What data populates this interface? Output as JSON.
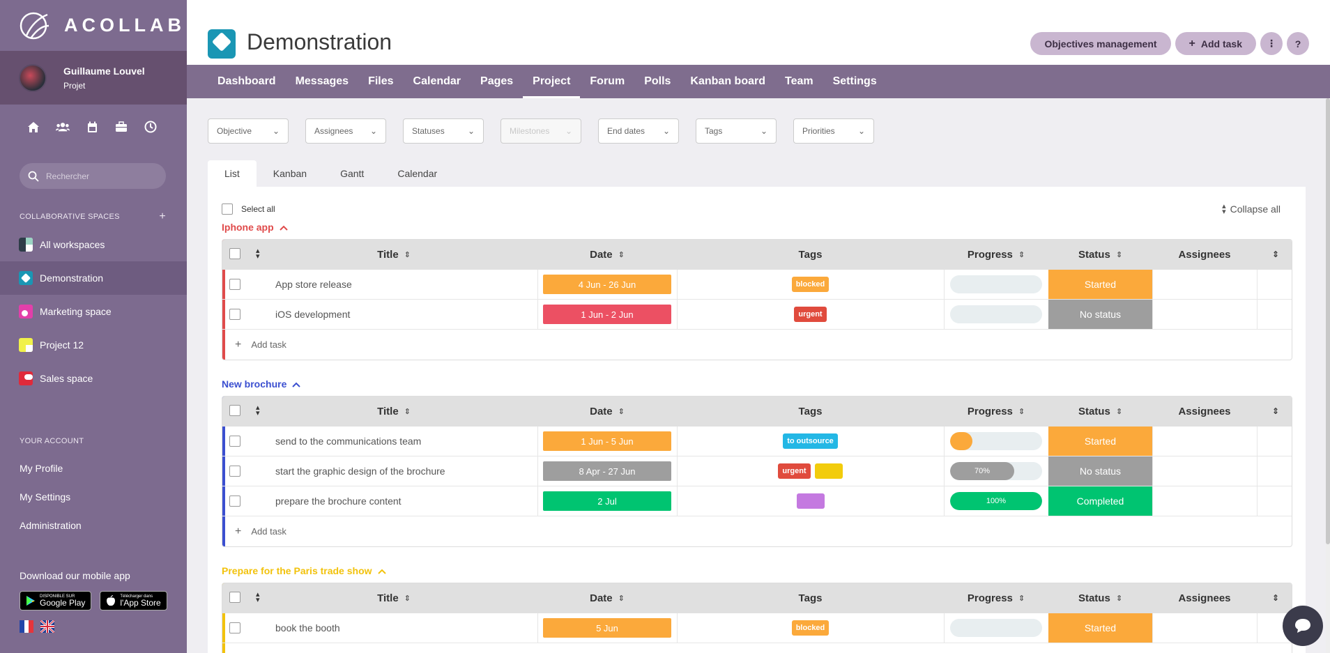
{
  "brand": {
    "name": "ACOLLAB"
  },
  "user": {
    "name": "Guillaume Louvel",
    "role": "Projet"
  },
  "quick_icons": [
    "home-icon",
    "users-icon",
    "calendar-icon",
    "briefcase-icon",
    "clock-icon"
  ],
  "side_search": {
    "placeholder": "Rechercher"
  },
  "spaces": {
    "label": "COLLABORATIVE SPACES",
    "add": "+",
    "items": [
      {
        "label": "All workspaces"
      },
      {
        "label": "Demonstration"
      },
      {
        "label": "Marketing space"
      },
      {
        "label": "Project 12"
      },
      {
        "label": "Sales space"
      }
    ]
  },
  "account": {
    "label": "YOUR ACCOUNT",
    "items": [
      {
        "label": "My Profile"
      },
      {
        "label": "My Settings"
      },
      {
        "label": "Administration"
      }
    ]
  },
  "mobile": {
    "label": "Download our mobile app",
    "google_small": "DISPONIBLE SUR",
    "google_big": "Google Play",
    "apple_small": "Télécharger dans",
    "apple_big": "l'App Store"
  },
  "header": {
    "title": "Demonstration",
    "objectives_btn": "Objectives management",
    "add_task_btn": "Add task",
    "more_btn": "⋮",
    "help_btn": "?"
  },
  "nav": [
    "Dashboard",
    "Messages",
    "Files",
    "Calendar",
    "Pages",
    "Project",
    "Forum",
    "Polls",
    "Kanban board",
    "Team",
    "Settings"
  ],
  "filters": [
    "Objective",
    "Assignees",
    "Statuses",
    "Milestones",
    "End dates",
    "Tags",
    "Priorities"
  ],
  "view_tabs": [
    "List",
    "Kanban",
    "Gantt",
    "Calendar"
  ],
  "list": {
    "select_all": "Select all",
    "collapse_all": "Collapse all",
    "add_task": "Add task"
  },
  "columns": {
    "title": "Title",
    "date": "Date",
    "tags": "Tags",
    "progress": "Progress",
    "status": "Status",
    "assignees": "Assignees"
  },
  "colors": {
    "orange": "#fba93b",
    "red": "#ec5063",
    "gray": "#9e9e9e",
    "green": "#00c471",
    "blue": "#23b7e5",
    "yellow": "#f2cc0c",
    "purple": "#c479e0",
    "tag_red": "#e04b3d"
  },
  "groups": [
    {
      "title": "Iphone app",
      "color": "#e04b4b",
      "tasks": [
        {
          "title": "App store release",
          "date": "4 Jun - 26 Jun",
          "date_color": "#fba93b",
          "tags": [
            {
              "label": "blocked",
              "color": "#fba93b"
            }
          ],
          "progress": 0,
          "progress_label": "",
          "status": "Started",
          "status_color": "#fba93b"
        },
        {
          "title": "iOS development",
          "date": "1 Jun - 2 Jun",
          "date_color": "#ec5063",
          "tags": [
            {
              "label": "urgent",
              "color": "#e04b3d"
            }
          ],
          "progress": 0,
          "progress_label": "",
          "status": "No status",
          "status_color": "#9e9e9e"
        }
      ]
    },
    {
      "title": "New brochure",
      "color": "#3b4fd0",
      "tasks": [
        {
          "title": "send to the communications team",
          "date": "1 Jun - 5 Jun",
          "date_color": "#fba93b",
          "tags": [
            {
              "label": "to outsource",
              "color": "#23b7e5"
            }
          ],
          "progress": 0.2,
          "progress_label": "",
          "status": "Started",
          "status_color": "#fba93b"
        },
        {
          "title": "start the graphic design of the brochure",
          "date": "8 Apr - 27 Jun",
          "date_color": "#9e9e9e",
          "tags": [
            {
              "label": "urgent",
              "color": "#e04b3d"
            },
            {
              "label": "",
              "color": "#f2cc0c"
            }
          ],
          "progress": 0.7,
          "progress_label": "70%",
          "status": "No status",
          "status_color": "#9e9e9e"
        },
        {
          "title": "prepare the brochure content",
          "date": "2 Jul",
          "date_color": "#00c471",
          "tags": [
            {
              "label": "",
              "color": "#c479e0"
            }
          ],
          "progress": 1.0,
          "progress_label": "100%",
          "status": "Completed",
          "status_color": "#00c471"
        }
      ]
    },
    {
      "title": "Prepare for the Paris trade show",
      "color": "#f2c20c",
      "tasks": [
        {
          "title": "book the booth",
          "date": "5 Jun",
          "date_color": "#fba93b",
          "tags": [
            {
              "label": "blocked",
              "color": "#fba93b"
            }
          ],
          "progress": 0,
          "progress_label": "",
          "status": "Started",
          "status_color": "#fba93b"
        }
      ]
    }
  ]
}
